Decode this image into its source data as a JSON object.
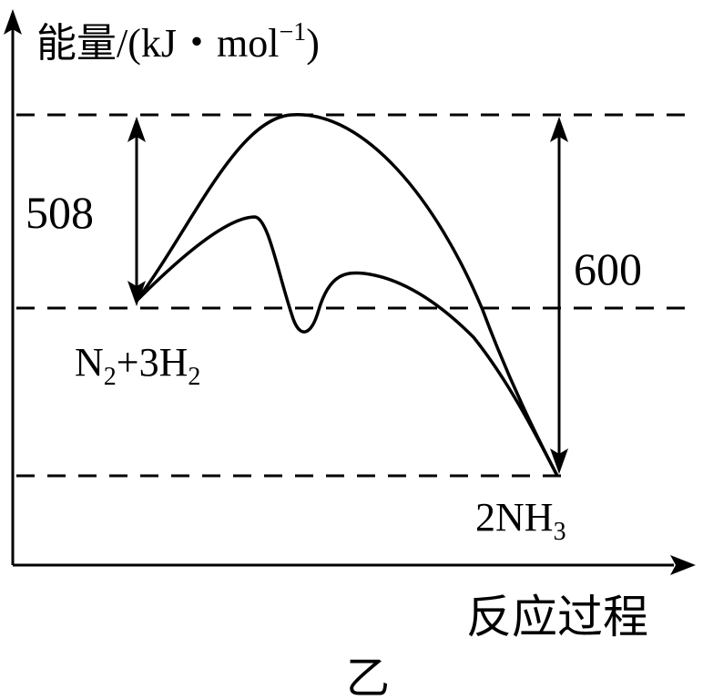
{
  "y_axis_label": {
    "prefix": "能量/(kJ・mol",
    "sup": "−1",
    "suffix": ")"
  },
  "x_axis_label": "反应过程",
  "caption": "乙",
  "energy_values": {
    "activation_label": "508",
    "release_label": "600"
  },
  "reactants": {
    "a": "N",
    "a_sub": "2",
    "mid": "+3H",
    "b_sub": "2"
  },
  "products": {
    "a": "2NH",
    "a_sub": "3"
  }
}
